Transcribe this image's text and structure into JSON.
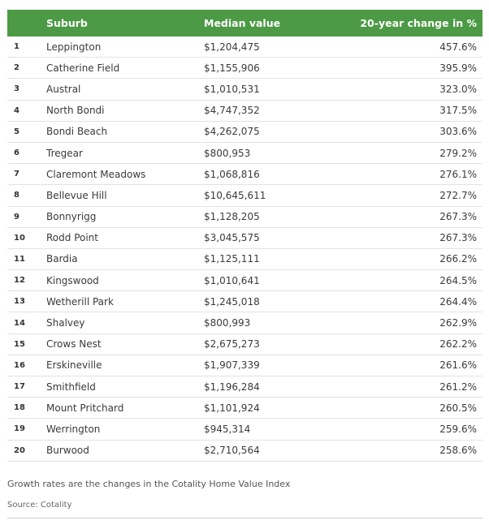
{
  "table": {
    "header": {
      "rank": "",
      "suburb": "Suburb",
      "median_value": "Median value",
      "change": "20-year change in %"
    },
    "rows": [
      {
        "rank": "1",
        "suburb": "Leppington",
        "median_value": "$1,204,475",
        "change": "457.6%"
      },
      {
        "rank": "2",
        "suburb": "Catherine Field",
        "median_value": "$1,155,906",
        "change": "395.9%"
      },
      {
        "rank": "3",
        "suburb": "Austral",
        "median_value": "$1,010,531",
        "change": "323.0%"
      },
      {
        "rank": "4",
        "suburb": "North Bondi",
        "median_value": "$4,747,352",
        "change": "317.5%"
      },
      {
        "rank": "5",
        "suburb": "Bondi Beach",
        "median_value": "$4,262,075",
        "change": "303.6%"
      },
      {
        "rank": "6",
        "suburb": "Tregear",
        "median_value": "$800,953",
        "change": "279.2%"
      },
      {
        "rank": "7",
        "suburb": "Claremont Meadows",
        "median_value": "$1,068,816",
        "change": "276.1%"
      },
      {
        "rank": "8",
        "suburb": "Bellevue Hill",
        "median_value": "$10,645,611",
        "change": "272.7%"
      },
      {
        "rank": "9",
        "suburb": "Bonnyrigg",
        "median_value": "$1,128,205",
        "change": "267.3%"
      },
      {
        "rank": "10",
        "suburb": "Rodd Point",
        "median_value": "$3,045,575",
        "change": "267.3%"
      },
      {
        "rank": "11",
        "suburb": "Bardia",
        "median_value": "$1,125,111",
        "change": "266.2%"
      },
      {
        "rank": "12",
        "suburb": "Kingswood",
        "median_value": "$1,010,641",
        "change": "264.5%"
      },
      {
        "rank": "13",
        "suburb": "Wetherill Park",
        "median_value": "$1,245,018",
        "change": "264.4%"
      },
      {
        "rank": "14",
        "suburb": "Shalvey",
        "median_value": "$800,993",
        "change": "262.9%"
      },
      {
        "rank": "15",
        "suburb": "Crows Nest",
        "median_value": "$2,675,273",
        "change": "262.2%"
      },
      {
        "rank": "16",
        "suburb": "Erskineville",
        "median_value": "$1,907,339",
        "change": "261.6%"
      },
      {
        "rank": "17",
        "suburb": "Smithfield",
        "median_value": "$1,196,284",
        "change": "261.2%"
      },
      {
        "rank": "18",
        "suburb": "Mount Pritchard",
        "median_value": "$1,101,924",
        "change": "260.5%"
      },
      {
        "rank": "19",
        "suburb": "Werrington",
        "median_value": "$945,314",
        "change": "259.6%"
      },
      {
        "rank": "20",
        "suburb": "Burwood",
        "median_value": "$2,710,564",
        "change": "258.6%"
      }
    ]
  },
  "footnote": "Growth rates are the changes in the Cotality Home Value Index",
  "source": "Source: Cotality",
  "colors": {
    "header_bg": "#4c9a45",
    "header_text": "#ffffff",
    "row_divider": "#e3e3e3"
  }
}
